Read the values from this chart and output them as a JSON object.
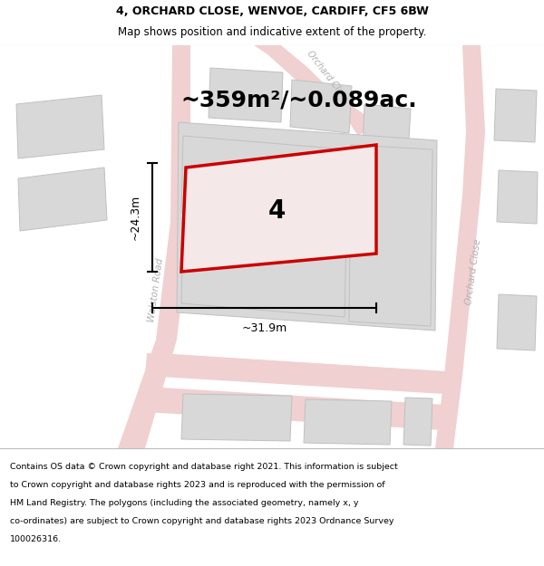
{
  "title_line1": "4, ORCHARD CLOSE, WENVOE, CARDIFF, CF5 6BW",
  "title_line2": "Map shows position and indicative extent of the property.",
  "area_text": "~359m²/~0.089ac.",
  "label_number": "4",
  "dim_width": "~31.9m",
  "dim_height": "~24.3m",
  "footer_lines": [
    "Contains OS data © Crown copyright and database right 2021. This information is subject",
    "to Crown copyright and database rights 2023 and is reproduced with the permission of",
    "HM Land Registry. The polygons (including the associated geometry, namely x, y",
    "co-ordinates) are subject to Crown copyright and database rights 2023 Ordnance Survey",
    "100026316."
  ],
  "bg_color": "#e8e8e8",
  "road_color": "#f0d0d0",
  "road_edge": "#e0b0b0",
  "building_color": "#d8d8d8",
  "building_edge": "#c0c0c0",
  "property_fill": "#f5e8e8",
  "property_edge": "#cc0000",
  "label_color": "#b0b0b0",
  "title_fontsize": 9,
  "subtitle_fontsize": 8.5,
  "area_fontsize": 18,
  "number_fontsize": 20,
  "dim_fontsize": 9,
  "road_label_fontsize": 7.5,
  "footer_fontsize": 6.8
}
